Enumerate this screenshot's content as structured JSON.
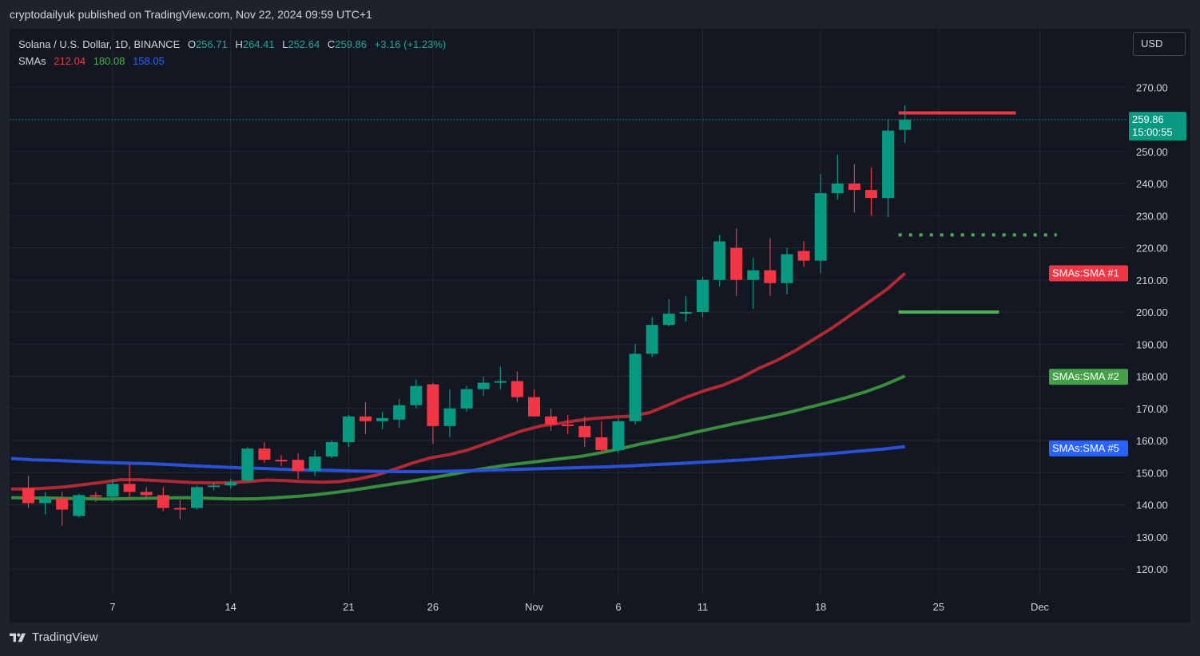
{
  "header": {
    "published": "cryptodailyuk published on TradingView.com, Nov 22, 2024 09:59 UTC+1"
  },
  "legend": {
    "symbol": "Solana / U.S. Dollar, 1D, BINANCE",
    "o_label": "O",
    "o_value": "256.71",
    "h_label": "H",
    "h_value": "264.41",
    "l_label": "L",
    "l_value": "252.64",
    "c_label": "C",
    "c_value": "259.86",
    "change": "+3.16 (+1.23%)",
    "sma_label": "SMAs",
    "sma1_value": "212.04",
    "sma2_value": "180.08",
    "sma5_value": "158.05"
  },
  "currency_button": "USD",
  "footer": {
    "brand": "TradingView"
  },
  "colors": {
    "up": "#089981",
    "down": "#f23645",
    "sma1": "#b22833",
    "sma2": "#388e3c",
    "sma5": "#2a4fd8",
    "grid": "#1e222d"
  },
  "chart_data": {
    "type": "candlestick",
    "ylim": [
      110,
      285
    ],
    "y_ticks": [
      "120.00",
      "130.00",
      "140.00",
      "150.00",
      "160.00",
      "170.00",
      "180.00",
      "190.00",
      "200.00",
      "210.00",
      "220.00",
      "230.00",
      "240.00",
      "250.00",
      "260.00",
      "270.00"
    ],
    "x_ticks": [
      {
        "label": "7",
        "index": 5
      },
      {
        "label": "14",
        "index": 12
      },
      {
        "label": "21",
        "index": 19
      },
      {
        "label": "26",
        "index": 24
      },
      {
        "label": "Nov",
        "index": 30
      },
      {
        "label": "6",
        "index": 35
      },
      {
        "label": "11",
        "index": 40
      },
      {
        "label": "18",
        "index": 47
      },
      {
        "label": "25",
        "index": 54
      },
      {
        "label": "Dec",
        "index": 60
      }
    ],
    "last_price": {
      "value": 259.86,
      "label": "259.86",
      "countdown": "15:00:55"
    },
    "candles": [
      [
        145.2,
        149,
        139,
        140.5
      ],
      [
        140.5,
        144,
        137,
        142
      ],
      [
        142,
        144,
        133.5,
        138.5
      ],
      [
        136.5,
        143.5,
        136,
        143
      ],
      [
        143,
        144,
        141,
        142.5
      ],
      [
        142.5,
        148,
        141,
        146.5
      ],
      [
        146.5,
        152.5,
        142,
        144
      ],
      [
        144,
        145.5,
        142,
        143
      ],
      [
        143,
        145.5,
        138,
        139
      ],
      [
        139,
        141.5,
        135.5,
        138.5
      ],
      [
        139,
        146,
        138.5,
        145.5
      ],
      [
        145.5,
        147,
        144.5,
        146
      ],
      [
        146,
        148,
        145,
        147
      ],
      [
        147.5,
        158,
        147,
        157.5
      ],
      [
        157.5,
        159.5,
        153,
        154
      ],
      [
        154,
        155.5,
        152,
        153.5
      ],
      [
        154,
        156,
        148,
        150.5
      ],
      [
        150.5,
        157,
        149,
        155
      ],
      [
        155,
        160,
        154.5,
        159.5
      ],
      [
        159.5,
        168,
        158,
        167.5
      ],
      [
        167.5,
        172,
        162,
        166
      ],
      [
        166,
        169,
        163.5,
        167
      ],
      [
        166.5,
        173,
        164,
        171
      ],
      [
        171,
        179,
        170,
        177
      ],
      [
        177.5,
        178,
        159,
        164.5
      ],
      [
        164.5,
        176,
        161,
        170
      ],
      [
        170,
        177,
        169,
        176
      ],
      [
        176,
        180,
        174,
        178
      ],
      [
        178,
        183,
        176,
        178.5
      ],
      [
        178.5,
        181.5,
        172,
        173.5
      ],
      [
        173.5,
        176,
        168,
        167.5
      ],
      [
        167.5,
        170,
        163,
        165
      ],
      [
        165,
        168,
        162,
        164.5
      ],
      [
        164.5,
        167.5,
        158,
        161
      ],
      [
        161,
        166,
        156,
        157
      ],
      [
        157,
        167,
        156,
        166
      ],
      [
        166,
        190,
        165,
        187
      ],
      [
        187,
        198.5,
        186,
        196
      ],
      [
        196,
        204,
        195.5,
        199.5
      ],
      [
        199.5,
        205,
        197,
        200
      ],
      [
        200,
        211,
        198.5,
        210
      ],
      [
        210,
        224,
        208,
        222
      ],
      [
        220,
        226,
        205,
        210
      ],
      [
        210,
        217,
        201,
        213
      ],
      [
        213,
        223,
        205,
        209
      ],
      [
        209,
        220,
        205.5,
        218
      ],
      [
        219,
        222,
        214,
        216
      ],
      [
        216,
        243,
        212,
        237
      ],
      [
        237,
        249,
        235,
        240
      ],
      [
        240,
        246,
        231,
        238
      ],
      [
        238,
        245,
        230,
        235.5
      ],
      [
        235.5,
        260,
        229.5,
        256.5
      ],
      [
        256.71,
        264.41,
        252.64,
        259.86
      ]
    ],
    "series": [
      {
        "name": "SMA #1",
        "values": [
          144.9,
          144.9,
          145.2,
          145.6,
          146.3,
          147,
          147.8,
          147.8,
          147.5,
          147.2,
          146.9,
          146.8,
          146.9,
          147.2,
          147.7,
          147.5,
          147.2,
          147,
          147.2,
          148,
          149.2,
          151,
          153,
          154.6,
          155.6,
          157,
          159,
          161,
          163,
          164.5,
          165.3,
          166.2,
          166.9,
          167.3,
          167.6,
          168.7,
          171,
          173.5,
          175.5,
          177.2,
          179.5,
          182.5,
          185,
          188,
          191.5,
          195,
          199,
          203,
          207,
          212.04
        ],
        "start_index": 0,
        "label": "SMAs:SMA #1"
      },
      {
        "name": "SMA #2",
        "values": [
          142.2,
          142.1,
          142.1,
          142,
          141.9,
          141.8,
          141.9,
          142,
          142.1,
          142.2,
          142.1,
          141.9,
          141.8,
          141.9,
          142.2,
          142.6,
          143.1,
          143.8,
          144.6,
          145.5,
          146.4,
          147.3,
          148.3,
          149.3,
          150.4,
          151.4,
          152.3,
          153,
          153.7,
          154.4,
          155.1,
          156.2,
          157.4,
          158.8,
          160,
          161.2,
          162.6,
          163.9,
          165.2,
          166.4,
          167.6,
          168.9,
          170.4,
          171.9,
          173.5,
          175.3,
          177.5,
          180.08
        ],
        "start_index": 0,
        "label": "SMAs:SMA #2"
      },
      {
        "name": "SMA #5",
        "values": [
          154.4,
          154,
          153.8,
          153.5,
          153.2,
          153,
          152.8,
          152.5,
          152.1,
          151.8,
          151.5,
          151.3,
          151,
          150.8,
          150.7,
          150.5,
          150.4,
          150.3,
          150.3,
          150.4,
          150.6,
          150.8,
          151,
          151.2,
          151.4,
          151.6,
          151.8,
          152.1,
          152.5,
          152.8,
          153.2,
          153.6,
          154,
          154.5,
          155,
          155.5,
          156.1,
          156.7,
          157.3,
          158.05
        ],
        "start_index": 0,
        "label": "SMAs:SMA #5"
      }
    ],
    "annotations": [
      {
        "name": "red-level",
        "value": 262,
        "color": "#f23645",
        "style": "solid",
        "from_index": 52,
        "to_index": 60
      },
      {
        "name": "green-dotted-level",
        "value": 224,
        "color": "#4caf50",
        "style": "dotted",
        "from_index": 52,
        "to_index": 61
      },
      {
        "name": "green-level",
        "value": 200,
        "color": "#4caf50",
        "style": "solid",
        "from_index": 52,
        "to_index": 59
      }
    ]
  }
}
